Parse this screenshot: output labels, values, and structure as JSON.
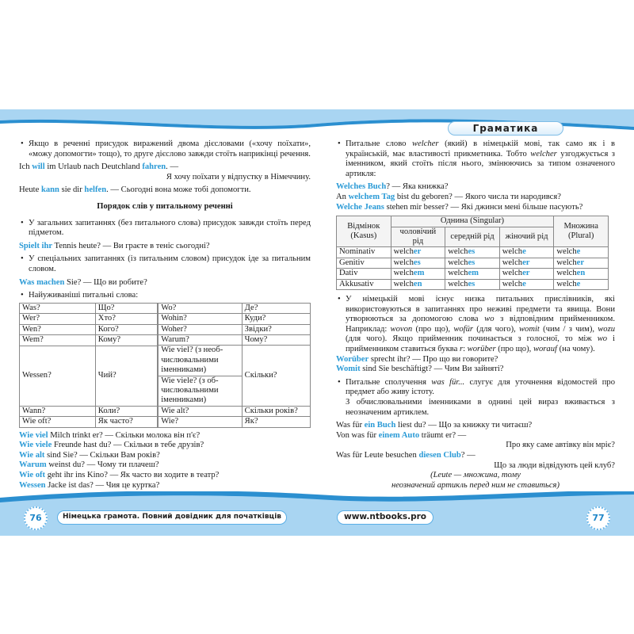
{
  "colors": {
    "accent": "#2a9ad6",
    "band": "#a9d5f2",
    "wave": "#2b8fd0"
  },
  "header": {
    "section": "Граматика"
  },
  "footer": {
    "left_page": "76",
    "right_page": "77",
    "book_title": "Німецька грамота. Повний довідник для початківців",
    "website": "www.ntbooks.pro"
  },
  "left": {
    "blocks": [
      {
        "type": "bullet",
        "segs": [
          {
            "t": "Якщо в реченні присудок виражений двома дієсловами («хочу поїхати», «можу допомогти» тощо), то друге дієслово завжди стоїть наприкінці речення."
          }
        ]
      },
      {
        "type": "line",
        "tight": true,
        "segs": [
          {
            "t": "Ich "
          },
          {
            "t": "will",
            "c": "hl"
          },
          {
            "t": " im Urlaub nach Deutchland "
          },
          {
            "t": "fahren",
            "c": "hl"
          },
          {
            "t": ". —"
          }
        ]
      },
      {
        "type": "right",
        "segs": [
          {
            "t": "Я хочу поїхати у відпустку в Німеччину."
          }
        ]
      },
      {
        "type": "line",
        "segs": [
          {
            "t": "Heute "
          },
          {
            "t": "kann",
            "c": "hl"
          },
          {
            "t": " sie dir "
          },
          {
            "t": "helfen",
            "c": "hl"
          },
          {
            "t": ". — Сьогодні вона може тобі допомогти."
          }
        ]
      },
      {
        "type": "heading",
        "segs": [
          {
            "t": "Порядок слів у питальному реченні"
          }
        ]
      },
      {
        "type": "bullet",
        "segs": [
          {
            "t": "У загальних запитаннях (без питального слова) присудок завжди стоїть перед підметом."
          }
        ]
      },
      {
        "type": "line",
        "segs": [
          {
            "t": "Spielt ihr",
            "c": "hl"
          },
          {
            "t": " Tennis heute? — Ви граєте в теніс сьогодні?"
          }
        ]
      },
      {
        "type": "bullet",
        "segs": [
          {
            "t": "У спеціальних запитаннях (із питальним словом) присудок іде за питальним словом."
          }
        ]
      },
      {
        "type": "line",
        "segs": [
          {
            "t": "Was machen",
            "c": "hl"
          },
          {
            "t": " Sie? — Що ви робите?"
          }
        ]
      },
      {
        "type": "bullet",
        "tight": true,
        "segs": [
          {
            "t": "Найуживаніші питальні слова:"
          }
        ]
      }
    ],
    "table_a": [
      [
        "Was?",
        "Що?"
      ],
      [
        "Wer?",
        "Хто?"
      ],
      [
        "Wen?",
        "Кого?"
      ],
      [
        "Wem?",
        "Кому?"
      ],
      [
        "Wessen?",
        "Чий?"
      ],
      [
        "Wann?",
        "Коли?"
      ],
      [
        "Wie oft?",
        "Як часто?"
      ]
    ],
    "table_b": {
      "rows_top": [
        [
          "Wo?",
          "Де?"
        ],
        [
          "Wohin?",
          "Куди?"
        ],
        [
          "Woher?",
          "Звідки?"
        ],
        [
          "Warum?",
          "Чому?"
        ]
      ],
      "wie_viel": "Wie viel? (з необ-числювальними іменниками)",
      "wie_viele": "Wie viele? (з об-числювальними іменниками)",
      "wie_viel_tr": "Скільки?",
      "rows_bottom": [
        [
          "Wie alt?",
          "Скільки років?"
        ],
        [
          "Wie?",
          "Як?"
        ]
      ]
    },
    "examples": [
      {
        "type": "line",
        "tight": true,
        "segs": [
          {
            "t": "Wie viel",
            "c": "hl"
          },
          {
            "t": " Milch trinkt er? — Скільки молока він п'є?"
          }
        ]
      },
      {
        "type": "line",
        "tight": true,
        "segs": [
          {
            "t": "Wie viele",
            "c": "hl"
          },
          {
            "t": " Freunde hast du? — Скільки в тебе друзів?"
          }
        ]
      },
      {
        "type": "line",
        "tight": true,
        "segs": [
          {
            "t": "Wie alt",
            "c": "hl"
          },
          {
            "t": " sind Sie? — Скільки Вам років?"
          }
        ]
      },
      {
        "type": "line",
        "tight": true,
        "segs": [
          {
            "t": "Warum",
            "c": "hl"
          },
          {
            "t": " weinst du? — Чому ти плачеш?"
          }
        ]
      },
      {
        "type": "line",
        "tight": true,
        "segs": [
          {
            "t": "Wie oft",
            "c": "hl"
          },
          {
            "t": " geht ihr ins Kino? — Як часто ви ходите в театр?"
          }
        ]
      },
      {
        "type": "line",
        "tight": true,
        "segs": [
          {
            "t": "Wessen",
            "c": "hl"
          },
          {
            "t": " Jacke ist das? — Чия це куртка?"
          }
        ]
      }
    ]
  },
  "right": {
    "blocks": [
      {
        "type": "bullet",
        "segs": [
          {
            "t": "Питальне слово "
          },
          {
            "t": "welcher",
            "c": "i"
          },
          {
            "t": " (який) в німецькій мові, так само як і в українській, має властивості прикметника. Тобто "
          },
          {
            "t": "welcher",
            "c": "i"
          },
          {
            "t": " узгоджується з іменником, який стоїть після нього, змінюючись за типом означеного артикля:"
          }
        ]
      },
      {
        "type": "line",
        "tight": true,
        "segs": [
          {
            "t": "Welches Buch",
            "c": "hl"
          },
          {
            "t": "? — Яка книжка?"
          }
        ]
      },
      {
        "type": "line",
        "tight": true,
        "segs": [
          {
            "t": "An "
          },
          {
            "t": "welchem Tag",
            "c": "hl"
          },
          {
            "t": " bist du geboren? — Якого числа ти народився?"
          }
        ]
      },
      {
        "type": "line",
        "tight": true,
        "segs": [
          {
            "t": "Welche Jeans",
            "c": "hl"
          },
          {
            "t": " stehen mir besser? — Які джинси мені більше пасують?"
          }
        ]
      }
    ],
    "case_table": {
      "h_case": "Відмінок (Kasus)",
      "h_singular": "Однина (Singular)",
      "h_plural": "Множина (Plural)",
      "h_genders": [
        "чоловічий рід",
        "середній рід",
        "жіночий рід"
      ],
      "rows": [
        {
          "case": "Nominativ",
          "forms": [
            [
              "welch",
              "er"
            ],
            [
              "welch",
              "es"
            ],
            [
              "welch",
              "e"
            ],
            [
              "welch",
              "e"
            ]
          ]
        },
        {
          "case": "Genitiv",
          "forms": [
            [
              "welch",
              "es"
            ],
            [
              "welch",
              "es"
            ],
            [
              "welch",
              "er"
            ],
            [
              "welch",
              "er"
            ]
          ]
        },
        {
          "case": "Dativ",
          "forms": [
            [
              "welch",
              "em"
            ],
            [
              "welch",
              "em"
            ],
            [
              "welch",
              "er"
            ],
            [
              "welch",
              "en"
            ]
          ]
        },
        {
          "case": "Akkusativ",
          "forms": [
            [
              "welch",
              "en"
            ],
            [
              "welch",
              "es"
            ],
            [
              "welch",
              "e"
            ],
            [
              "welch",
              "e"
            ]
          ]
        }
      ]
    },
    "blocks2": [
      {
        "type": "bullet",
        "tight": true,
        "segs": [
          {
            "t": "У німецькій мові існує низка питальних прислівників, які використовуються в запитаннях про неживі предмети та явища. Вони утворюються за допомогою слова "
          },
          {
            "t": "wo",
            "c": "i"
          },
          {
            "t": " з відповідним прийменником. Наприклад: "
          },
          {
            "t": "wovon",
            "c": "i"
          },
          {
            "t": " (про що), "
          },
          {
            "t": "wofür",
            "c": "i"
          },
          {
            "t": " (для чого), "
          },
          {
            "t": "womit",
            "c": "i"
          },
          {
            "t": " (чим / з чим), "
          },
          {
            "t": "wozu",
            "c": "i"
          },
          {
            "t": " (для чого). Якщо прийменник починається з голосної, то між "
          },
          {
            "t": "wo",
            "c": "i"
          },
          {
            "t": " і прийменником ставиться буква "
          },
          {
            "t": "r",
            "c": "i"
          },
          {
            "t": ": "
          },
          {
            "t": "worüber",
            "c": "i"
          },
          {
            "t": " (про що), "
          },
          {
            "t": "worauf",
            "c": "i"
          },
          {
            "t": " (на чому)."
          }
        ]
      },
      {
        "type": "line",
        "tight": true,
        "segs": [
          {
            "t": "Worüber",
            "c": "hl"
          },
          {
            "t": " sprecht ihr? — Про що ви говорите?"
          }
        ]
      },
      {
        "type": "line",
        "segs": [
          {
            "t": "Womit",
            "c": "hl"
          },
          {
            "t": " sind Sie beschäftigt? — Чим Ви зайняті?"
          }
        ]
      },
      {
        "type": "bullet",
        "tight": true,
        "segs": [
          {
            "t": "Питальне сполучення "
          },
          {
            "t": "was für...",
            "c": "i"
          },
          {
            "t": " слугує для уточнення відомостей про предмет або живу істоту."
          }
        ]
      },
      {
        "type": "bullet-cont",
        "segs": [
          {
            "t": "З обчислювальними іменниками в однині цей вираз вживається з неозначеним артиклем."
          }
        ]
      },
      {
        "type": "line",
        "tight": true,
        "segs": [
          {
            "t": "Was für "
          },
          {
            "t": "ein Buch",
            "c": "hl"
          },
          {
            "t": " liest du? — Що за книжку ти читаєш?"
          }
        ]
      },
      {
        "type": "line",
        "tight": true,
        "segs": [
          {
            "t": "Von was für "
          },
          {
            "t": "einem Auto",
            "c": "hl"
          },
          {
            "t": " träumt er? —"
          }
        ]
      },
      {
        "type": "right",
        "tight": true,
        "segs": [
          {
            "t": "Про яку саме автівку він мріє?"
          }
        ]
      },
      {
        "type": "line",
        "tight": true,
        "segs": [
          {
            "t": "Was für Leute besuchen "
          },
          {
            "t": "diesen Club",
            "c": "hl"
          },
          {
            "t": "? —"
          }
        ]
      },
      {
        "type": "right",
        "tight": true,
        "segs": [
          {
            "t": "Що за люди відвідують цей клуб?"
          }
        ]
      },
      {
        "type": "center",
        "tight": true,
        "segs": [
          {
            "t": "(Leute — множина, тому",
            "c": "i"
          }
        ]
      },
      {
        "type": "center",
        "tight": true,
        "segs": [
          {
            "t": "неозначений артикль перед ним не ставиться)",
            "c": "i"
          }
        ]
      }
    ]
  }
}
